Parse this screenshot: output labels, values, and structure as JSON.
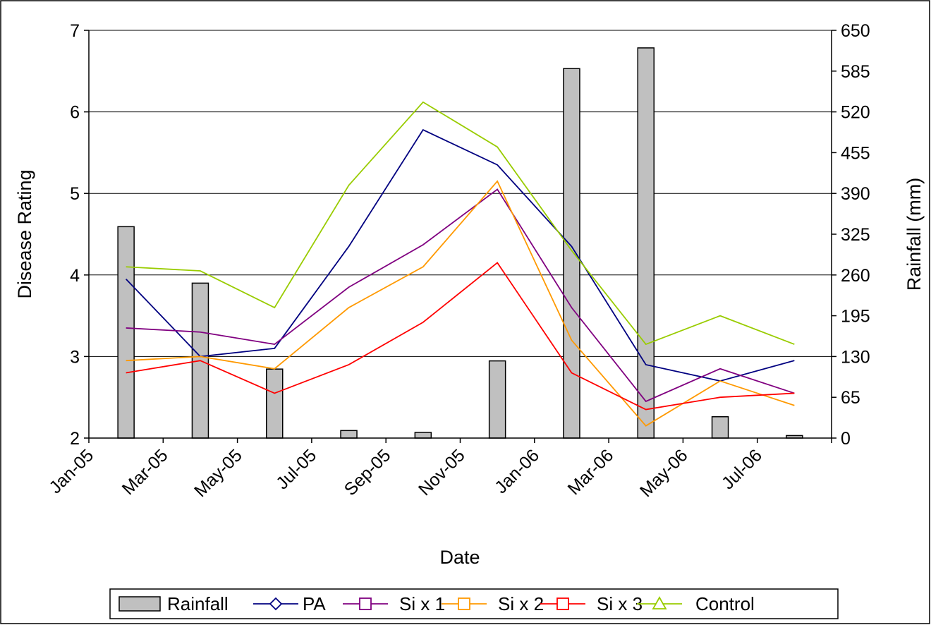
{
  "chart_data": {
    "type": "line",
    "xlabel": "Date",
    "ylabel": "Disease Rating",
    "y2label": "Rainfall (mm)",
    "x_ticks": [
      "Jan-05",
      "Mar-05",
      "May-05",
      "Jul-05",
      "Sep-05",
      "Nov-05",
      "Jan-06",
      "Mar-06",
      "May-06",
      "Jul-06"
    ],
    "ylim": [
      2,
      7
    ],
    "y_ticks": [
      "2",
      "3",
      "4",
      "5",
      "6",
      "7"
    ],
    "y2lim": [
      0,
      650
    ],
    "y2_ticks": [
      "0",
      "65",
      "130",
      "195",
      "260",
      "325",
      "390",
      "455",
      "520",
      "585",
      "650"
    ],
    "grid": "horizontal",
    "legend_position": "bottom",
    "x": [
      "Feb-05",
      "Apr-05",
      "Jun-05",
      "Aug-05",
      "Oct-05",
      "Dec-05",
      "Feb-06",
      "Apr-06",
      "Jun-06",
      "Aug-06"
    ],
    "rainfall": {
      "name": "Rainfall",
      "axis": "right",
      "type": "bar",
      "color": "#c0c0c0",
      "values": [
        337,
        247,
        110,
        12,
        9,
        123,
        589,
        622,
        34,
        4
      ]
    },
    "series": [
      {
        "name": "PA",
        "color": "#000080",
        "marker": "diamond",
        "values": [
          3.95,
          3.0,
          3.1,
          4.35,
          5.78,
          5.35,
          4.35,
          2.9,
          2.7,
          2.95
        ]
      },
      {
        "name": "Si x 1",
        "color": "#800080",
        "marker": "square",
        "values": [
          3.35,
          3.3,
          3.15,
          3.85,
          4.37,
          5.05,
          3.6,
          2.45,
          2.85,
          2.55
        ]
      },
      {
        "name": "Si x 2",
        "color": "#ff9900",
        "marker": "square",
        "values": [
          2.95,
          3.0,
          2.85,
          3.6,
          4.1,
          5.15,
          3.2,
          2.15,
          2.7,
          2.4
        ]
      },
      {
        "name": "Si x 3",
        "color": "#ff0000",
        "marker": "square",
        "values": [
          2.8,
          2.95,
          2.55,
          2.9,
          3.42,
          4.15,
          2.8,
          2.35,
          2.5,
          2.55
        ]
      },
      {
        "name": "Control",
        "color": "#99cc00",
        "marker": "triangle",
        "values": [
          4.1,
          4.05,
          3.6,
          5.1,
          6.12,
          5.57,
          4.3,
          3.15,
          3.5,
          3.15
        ]
      }
    ]
  }
}
